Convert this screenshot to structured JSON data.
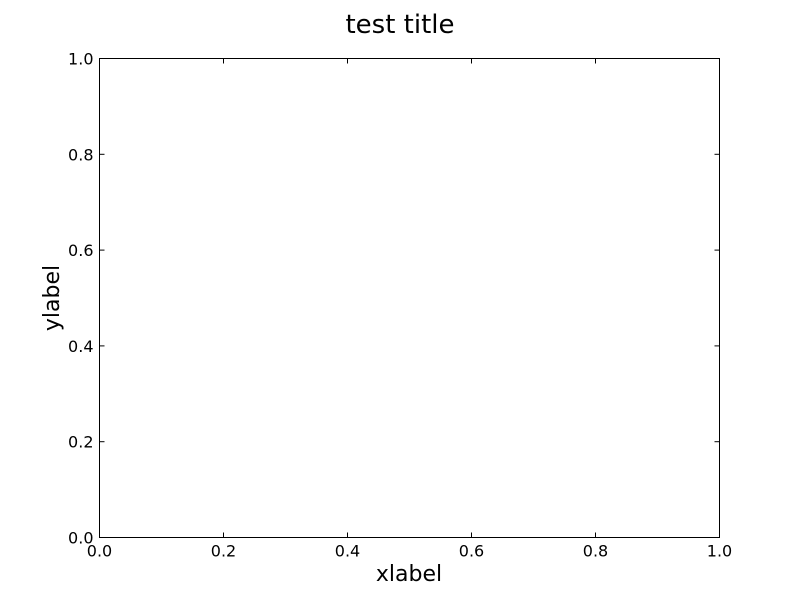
{
  "chart_data": {
    "type": "line",
    "title": "test title",
    "xlabel": "xlabel",
    "ylabel": "ylabel",
    "xlim": [
      0.0,
      1.0
    ],
    "ylim": [
      0.0,
      1.0
    ],
    "xticks": [
      "0.0",
      "0.2",
      "0.4",
      "0.6",
      "0.8",
      "1.0"
    ],
    "yticks": [
      "0.0",
      "0.2",
      "0.4",
      "0.6",
      "0.8",
      "1.0"
    ],
    "grid": false,
    "series": []
  }
}
